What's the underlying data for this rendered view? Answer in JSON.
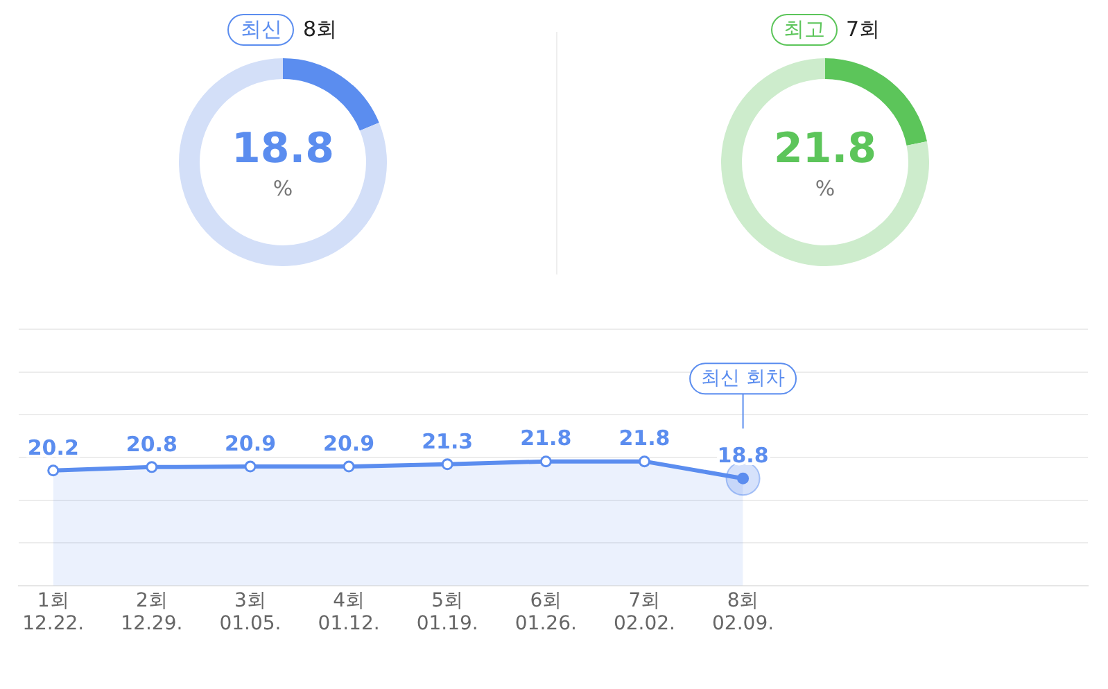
{
  "chart_data": [
    {
      "type": "donut",
      "title": "최신",
      "subtitle": "8회",
      "categories": [
        null,
        null
      ],
      "values": [
        18.8,
        81.2
      ],
      "colors": [
        "#5b8def",
        "#d3dff8"
      ],
      "value_labels": [
        "18.8",
        null
      ],
      "annotations": [
        "%"
      ]
    },
    {
      "type": "donut",
      "title": "최고",
      "subtitle": "7회",
      "categories": [
        null,
        null
      ],
      "values": [
        21.8,
        78.2
      ],
      "colors": [
        "#5cc55a",
        "#cdeccc"
      ],
      "value_labels": [
        "21.8",
        null
      ],
      "annotations": [
        "%"
      ]
    },
    {
      "type": "area",
      "categories": [
        "1회\n12.22.",
        "2회\n12.29.",
        "3회\n01.05.",
        "4회\n01.12.",
        "5회\n01.19.",
        "6회\n01.26.",
        "7회\n02.02.",
        "8회\n02.09."
      ],
      "series": [
        {
          "color": "#5b8def",
          "values": [
            20.2,
            20.8,
            20.9,
            20.9,
            21.3,
            21.8,
            21.8,
            18.8
          ]
        }
      ],
      "ylim": [
        0,
        45
      ],
      "yticks": [
        {
          "value": 0,
          "label": null
        },
        {
          "value": 7.5,
          "label": null
        },
        {
          "value": 15,
          "label": null
        },
        {
          "value": 22.5,
          "label": null
        },
        {
          "value": 30,
          "label": null
        },
        {
          "value": 37.5,
          "label": null
        },
        {
          "value": 45,
          "label": null
        }
      ],
      "grid": "y",
      "tick_labels": "x",
      "data_labels": true,
      "marker": "circle",
      "annotations": [
        "최신 회차"
      ]
    }
  ]
}
